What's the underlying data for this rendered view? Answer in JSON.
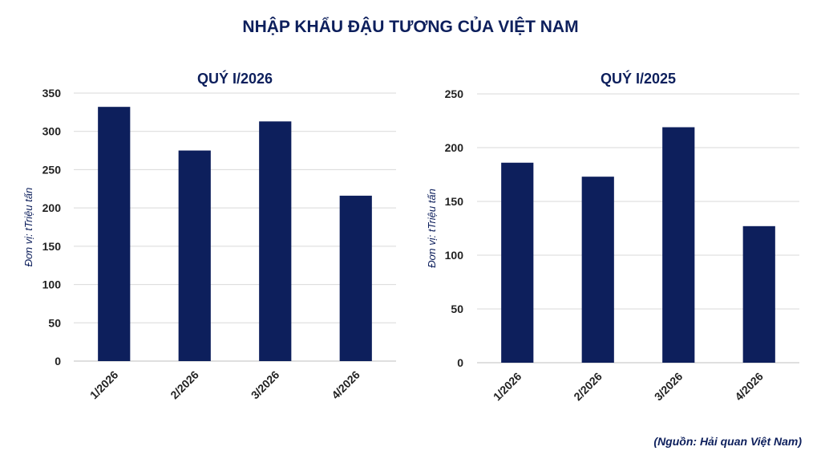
{
  "title": "NHẬP KHẨU ĐẬU TƯƠNG CỦA VIỆT NAM",
  "source": "(Nguồn: Hải quan Việt Nam)",
  "colors": {
    "bar": "#0d1f5c",
    "text": "#0d1f5c"
  },
  "chart_data": [
    {
      "type": "bar",
      "title": "QUÝ I/2026",
      "ylabel": "Đơn vị: tTriệu tấn",
      "categories": [
        "1/2026",
        "2/2026",
        "3/2026",
        "4/2026"
      ],
      "values": [
        332,
        275,
        313,
        216
      ],
      "ylim": [
        0,
        350
      ],
      "yticks": [
        0,
        50,
        100,
        150,
        200,
        250,
        300,
        350
      ],
      "grid": true
    },
    {
      "type": "bar",
      "title": "QUÝ I/2025",
      "ylabel": "Đơn vị: tTriệu tấn",
      "categories": [
        "1/2026",
        "2/2026",
        "3/2026",
        "4/2026"
      ],
      "values": [
        186,
        173,
        219,
        127
      ],
      "ylim": [
        0,
        250
      ],
      "yticks": [
        0,
        50,
        100,
        150,
        200,
        250
      ],
      "grid": true
    }
  ]
}
